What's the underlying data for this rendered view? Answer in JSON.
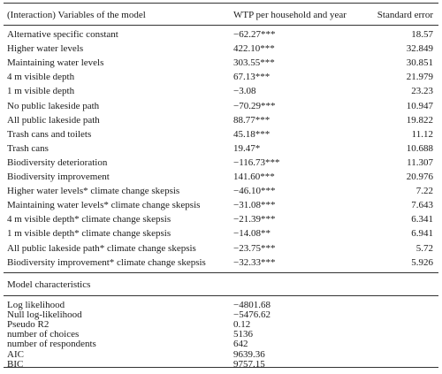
{
  "header": {
    "col_variable": "(Interaction) Variables of the model",
    "col_wtp": "WTP per household and year",
    "col_se": "Standard error"
  },
  "rows": [
    {
      "variable": "Alternative specific constant",
      "wtp": "−62.27***",
      "se": "18.57"
    },
    {
      "variable": "Higher water levels",
      "wtp": "422.10***",
      "se": "32.849"
    },
    {
      "variable": "Maintaining water levels",
      "wtp": "303.55***",
      "se": "30.851"
    },
    {
      "variable": "4 m visible depth",
      "wtp": "67.13***",
      "se": "21.979"
    },
    {
      "variable": "1 m visible depth",
      "wtp": "−3.08",
      "se": "23.23"
    },
    {
      "variable": "No public lakeside path",
      "wtp": "−70.29***",
      "se": "10.947"
    },
    {
      "variable": "All public lakeside path",
      "wtp": "88.77***",
      "se": "19.822"
    },
    {
      "variable": "Trash cans and toilets",
      "wtp": "45.18***",
      "se": "11.12"
    },
    {
      "variable": "Trash cans",
      "wtp": "19.47*",
      "se": "10.688"
    },
    {
      "variable": "Biodiversity deterioration",
      "wtp": "−116.73***",
      "se": "11.307"
    },
    {
      "variable": "Biodiversity improvement",
      "wtp": "141.60***",
      "se": "20.976"
    },
    {
      "variable": "Higher water levels* climate change skepsis",
      "wtp": "−46.10***",
      "se": "7.22"
    },
    {
      "variable": "Maintaining water levels* climate change skepsis",
      "wtp": "−31.08***",
      "se": "7.643"
    },
    {
      "variable": "4 m visible depth* climate change skepsis",
      "wtp": "−21.39***",
      "se": "6.341"
    },
    {
      "variable": "1 m visible depth* climate change skepsis",
      "wtp": "−14.08**",
      "se": "6.941"
    },
    {
      "variable": "All public lakeside path* climate change skepsis",
      "wtp": "−23.75***",
      "se": "5.72"
    },
    {
      "variable": "Biodiversity improvement* climate change skepsis",
      "wtp": "−32.33***",
      "se": "5.926"
    }
  ],
  "model_section": {
    "title": "Model characteristics",
    "rows": [
      {
        "label": "Log likelihood",
        "value": "−4801.68"
      },
      {
        "label": "Null log-likelihood",
        "value": "−5476.62"
      },
      {
        "label": "Pseudo R2",
        "value": "0.12"
      },
      {
        "label": "number of choices",
        "value": "5136"
      },
      {
        "label": "number of respondents",
        "value": "642"
      },
      {
        "label": "AIC",
        "value": "9639.36"
      },
      {
        "label": "BIC",
        "value": "9757.15"
      }
    ]
  }
}
